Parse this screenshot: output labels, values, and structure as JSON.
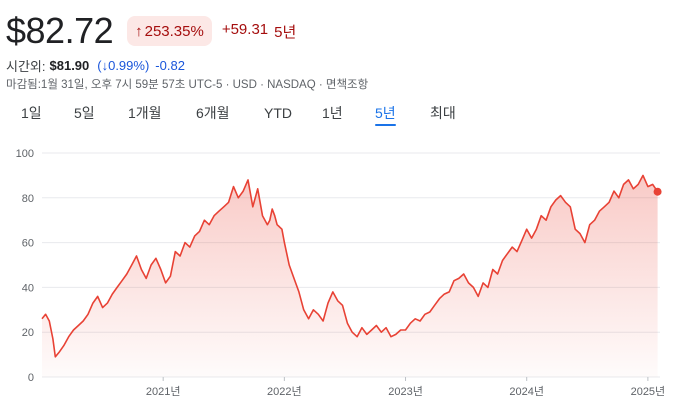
{
  "header": {
    "price": "$82.72",
    "change_badge": {
      "arrow": "↑",
      "percent": "253.35%"
    },
    "change_value": "+59.31",
    "change_period": "5년"
  },
  "after_hours": {
    "label": "시간외:",
    "price": "$81.90",
    "percent": "(↓0.99%)",
    "change": "-0.82"
  },
  "meta": "마감됨:1월 31일, 오후 7시 59분 57초 UTC-5 · USD · NASDAQ · 면책조항",
  "tabs": [
    "1일",
    "5일",
    "1개월",
    "6개월",
    "YTD",
    "1년",
    "5년",
    "최대"
  ],
  "active_tab": "5년",
  "colors": {
    "line": "#e84235",
    "accent": "#1a73e8",
    "negative": "#a50e0e"
  },
  "chart_data": {
    "type": "area",
    "y_ticks": [
      "100",
      "80",
      "60",
      "40",
      "20",
      "0"
    ],
    "x_ticks": [
      "2021년",
      "2022년",
      "2023년",
      "2024년",
      "2025년"
    ],
    "ylim": [
      0,
      100
    ],
    "xlim": [
      2020.0,
      2025.1
    ],
    "grid": true,
    "series": [
      {
        "x": [
          2020.0,
          2020.03,
          2020.06,
          2020.09,
          2020.11,
          2020.14,
          2020.18,
          2020.22,
          2020.26,
          2020.3,
          2020.34,
          2020.38,
          2020.42,
          2020.46,
          2020.5,
          2020.54,
          2020.58,
          2020.62,
          2020.66,
          2020.7,
          2020.74,
          2020.78,
          2020.82,
          2020.86,
          2020.9,
          2020.94,
          2020.98,
          2021.02,
          2021.06,
          2021.1,
          2021.14,
          2021.18,
          2021.22,
          2021.26,
          2021.3,
          2021.34,
          2021.38,
          2021.42,
          2021.46,
          2021.5,
          2021.54,
          2021.58,
          2021.62,
          2021.66,
          2021.7,
          2021.74,
          2021.78,
          2021.82,
          2021.86,
          2021.88,
          2021.9,
          2021.92,
          2021.94,
          2021.96,
          2021.98,
          2022.0,
          2022.04,
          2022.08,
          2022.12,
          2022.16,
          2022.2,
          2022.24,
          2022.28,
          2022.32,
          2022.36,
          2022.4,
          2022.44,
          2022.48,
          2022.52,
          2022.56,
          2022.6,
          2022.64,
          2022.68,
          2022.72,
          2022.76,
          2022.8,
          2022.84,
          2022.88,
          2022.92,
          2022.96,
          2023.0,
          2023.04,
          2023.08,
          2023.12,
          2023.16,
          2023.2,
          2023.24,
          2023.28,
          2023.32,
          2023.36,
          2023.4,
          2023.44,
          2023.48,
          2023.52,
          2023.56,
          2023.6,
          2023.64,
          2023.68,
          2023.72,
          2023.76,
          2023.8,
          2023.84,
          2023.88,
          2023.92,
          2023.96,
          2024.0,
          2024.04,
          2024.08,
          2024.12,
          2024.16,
          2024.2,
          2024.24,
          2024.28,
          2024.32,
          2024.36,
          2024.4,
          2024.44,
          2024.48,
          2024.52,
          2024.56,
          2024.6,
          2024.64,
          2024.68,
          2024.72,
          2024.76,
          2024.8,
          2024.84,
          2024.88,
          2024.92,
          2024.96,
          2025.0,
          2025.04,
          2025.08
        ],
        "y": [
          26,
          28,
          25,
          17,
          9,
          11,
          14,
          18,
          21,
          23,
          25,
          28,
          33,
          36,
          31,
          33,
          37,
          40,
          43,
          46,
          50,
          54,
          48,
          44,
          50,
          53,
          48,
          42,
          45,
          56,
          54,
          60,
          58,
          63,
          65,
          70,
          68,
          72,
          74,
          76,
          78,
          85,
          80,
          83,
          88,
          76,
          84,
          72,
          68,
          70,
          75,
          72,
          68,
          67,
          66,
          60,
          50,
          44,
          38,
          30,
          26,
          30,
          28,
          25,
          33,
          38,
          34,
          32,
          24,
          20,
          18,
          22,
          19,
          21,
          23,
          20,
          22,
          18,
          19,
          21,
          21,
          24,
          26,
          25,
          28,
          29,
          32,
          35,
          37,
          38,
          43,
          44,
          46,
          42,
          40,
          36,
          42,
          40,
          48,
          46,
          52,
          55,
          58,
          56,
          61,
          66,
          62,
          66,
          72,
          70,
          76,
          79,
          81,
          78,
          76,
          66,
          64,
          60,
          68,
          70,
          74,
          76,
          78,
          83,
          80,
          86,
          88,
          84,
          86,
          90,
          85,
          86,
          82.72
        ]
      }
    ]
  }
}
